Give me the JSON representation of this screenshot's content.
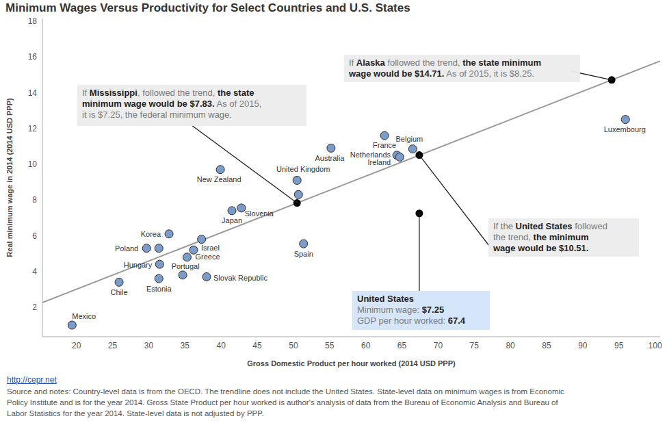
{
  "chart_data": {
    "type": "scatter",
    "title": "Minimum Wages Versus Productivity for Select Countries and U.S. States",
    "x_label": "Gross Domestic Product per hour worked (2014 USD PPP)",
    "y_label": "Real minimum wage in 2014 (2014 USD PPP)",
    "xlim": [
      15.3,
      100.7
    ],
    "xticks": [
      20,
      25,
      30,
      35,
      40,
      45,
      50,
      55,
      60,
      65,
      70,
      75,
      80,
      85,
      90,
      95,
      100
    ],
    "ylim": [
      0.35,
      18.15
    ],
    "yticks": [
      2,
      4,
      6,
      8,
      10,
      12,
      14,
      16,
      18
    ],
    "grid": false,
    "series": [
      {
        "color": "#7b9cc9",
        "marker": "circle",
        "x": [
          19.4,
          25.9,
          29.7,
          31.4,
          32.8,
          31.5,
          31.4,
          34.7,
          38.0,
          35.3,
          36.2,
          37.3,
          41.5,
          42.8,
          39.9,
          50.5,
          50.7,
          51.4,
          55.2,
          62.6,
          66.5,
          64.3,
          64.7,
          95.9
        ],
        "y": [
          1.0,
          3.4,
          5.3,
          5.3,
          6.1,
          4.4,
          3.6,
          3.8,
          3.7,
          4.8,
          5.2,
          5.8,
          7.4,
          7.55,
          9.7,
          9.1,
          8.3,
          5.55,
          10.9,
          11.6,
          10.85,
          10.5,
          10.4,
          12.5
        ],
        "labels": [
          "Mexico",
          "Chile",
          "Poland",
          null,
          "Korea",
          "Hungary",
          "Estonia",
          "Portugal",
          "Slovak Republic",
          "Greece",
          "Israel",
          null,
          "Japan",
          "Slovenia",
          "New Zealand",
          "United Kingdom",
          null,
          "Spain",
          "Australia",
          "France",
          "Belgium",
          "Netherlands",
          "Ireland",
          "Luxembourg"
        ]
      }
    ],
    "trendline": {
      "color": "#999999",
      "x": [
        15.3,
        100.7
      ],
      "y": [
        2.26,
        15.77
      ]
    },
    "annotations": [
      {
        "x": 94.0,
        "y": 14.71,
        "lines": [
          [
            "If ",
            [
              "Alaska"
            ],
            " followed the trend, ",
            [
              "the state minimum"
            ]
          ],
          [
            [
              "wage would be $14.71."
            ],
            " As of 2015, it is $8.25."
          ]
        ]
      },
      {
        "x": 50.5,
        "y": 7.83,
        "lines": [
          [
            "If ",
            [
              "Mississippi"
            ],
            ", followed the trend, ",
            [
              "the state"
            ]
          ],
          [
            [
              "minimum wage would be $7.83."
            ],
            " As of 2015,"
          ],
          [
            "it is $7.25, the federal minimum wage."
          ]
        ]
      },
      {
        "x": 67.4,
        "y": 10.51,
        "lines": [
          [
            "If the ",
            [
              "United States"
            ],
            " followed"
          ],
          [
            "the trend, ",
            [
              "the minimum"
            ]
          ],
          [
            [
              "wage would be $10.51."
            ]
          ]
        ]
      },
      {
        "x": 67.4,
        "y": 7.25,
        "lines": [
          [
            [
              "United States"
            ]
          ],
          [
            "Minimum wage: ",
            [
              "$7.25"
            ]
          ],
          [
            "GDP per hour worked: ",
            [
              "67.4"
            ]
          ]
        ]
      }
    ],
    "footer": {
      "link": "http://cepr.net",
      "notes": [
        "Source and notes: Country-level data is from the OECD. The trendline does not include the United States. State-level data on minimum wages is from Economic",
        "Policy Institute and is for the year 2014. Gross State Product per hour worked is author's analysis of data from the Bureau of Economic Analysis and Bureau of",
        "Labor Statistics for the year 2014. State-level data is not adjusted by PPP."
      ]
    }
  }
}
